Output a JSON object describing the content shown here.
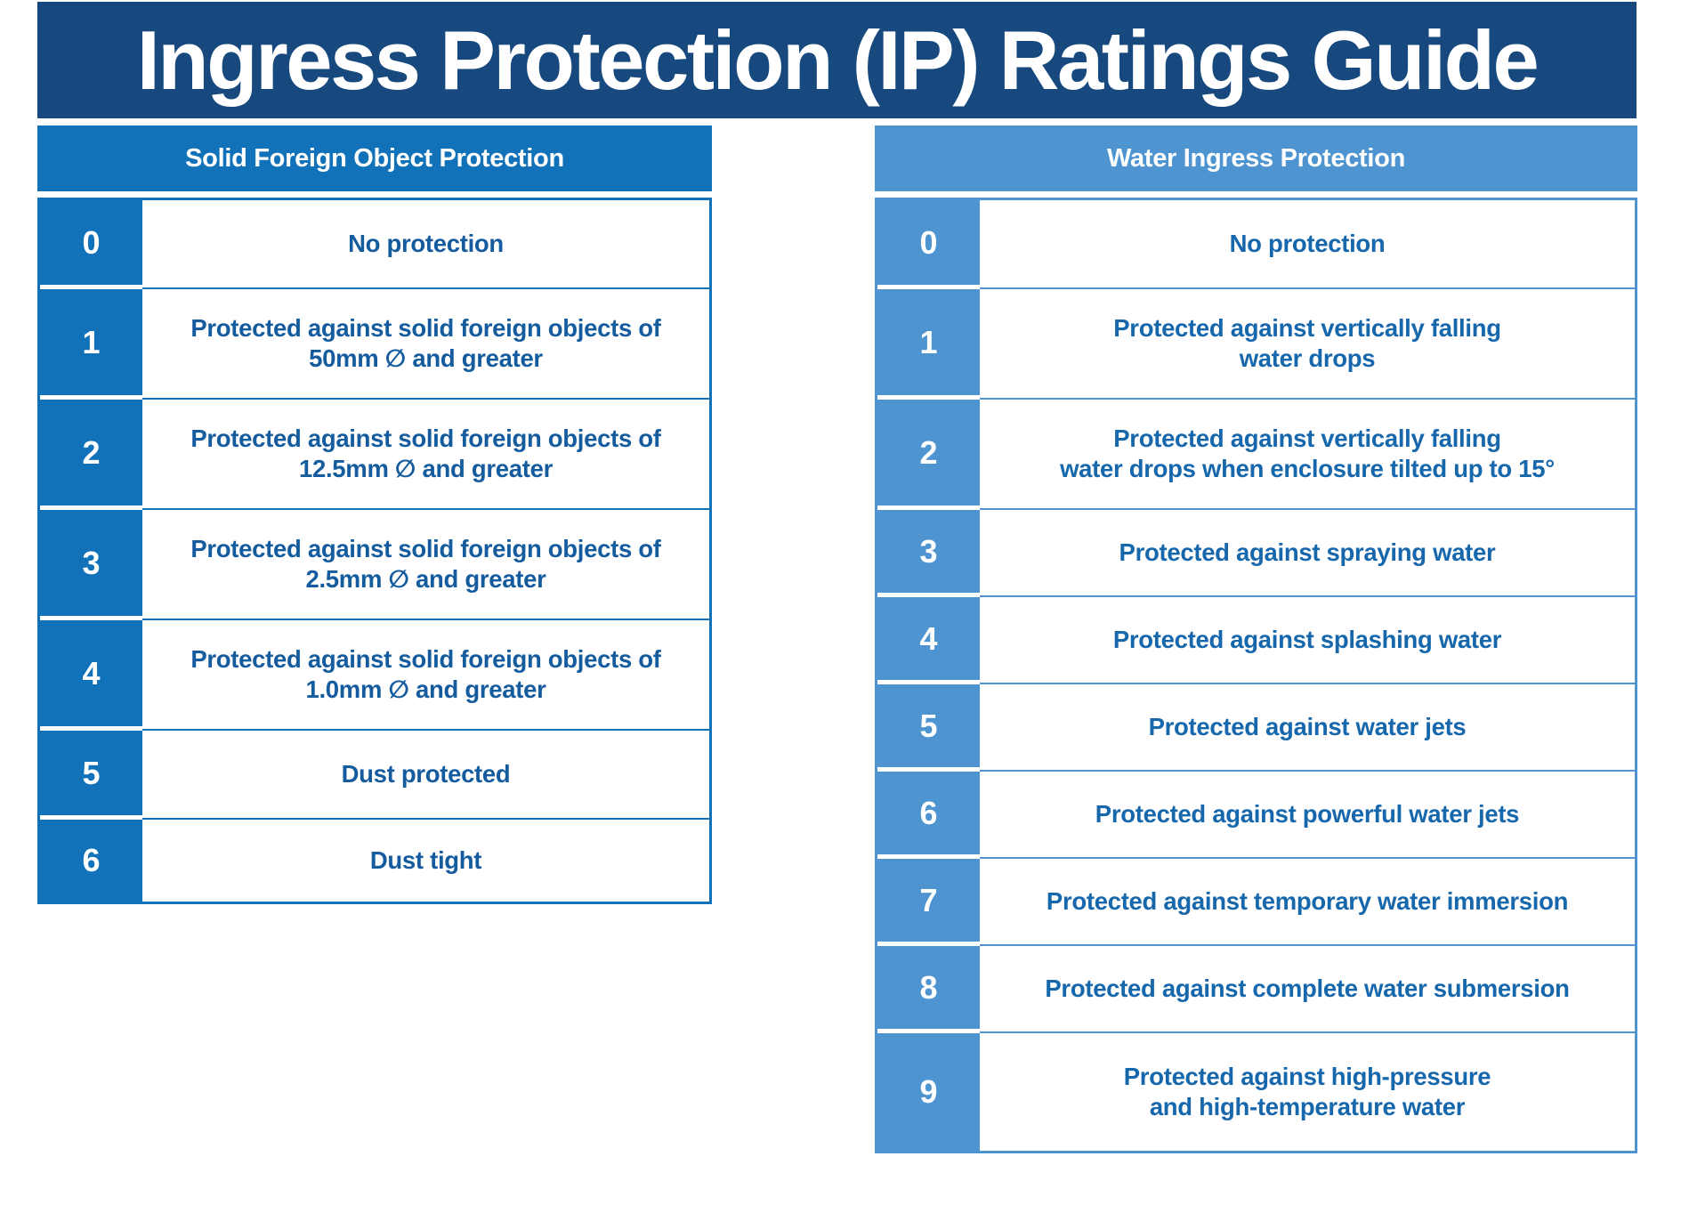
{
  "title": "Ingress Protection (IP) Ratings Guide",
  "colors": {
    "banner_background": "#17497F",
    "banner_text": "#FFFFFF",
    "solid_table_accent": "#1272B9",
    "water_table_accent": "#4E94D0",
    "solid_table_text": "#155C9F",
    "water_table_text": "#1767AC"
  },
  "solid_table": {
    "header": "Solid Foreign Object Protection",
    "rows": [
      {
        "rating": "0",
        "description": "No protection"
      },
      {
        "rating": "1",
        "description": "Protected against solid foreign objects of\n50mm ∅ and greater"
      },
      {
        "rating": "2",
        "description": "Protected against solid foreign objects of\n12.5mm ∅ and greater"
      },
      {
        "rating": "3",
        "description": "Protected against solid foreign objects of\n2.5mm ∅ and greater"
      },
      {
        "rating": "4",
        "description": "Protected against solid foreign objects of\n1.0mm ∅ and greater"
      },
      {
        "rating": "5",
        "description": "Dust protected"
      },
      {
        "rating": "6",
        "description": "Dust tight"
      }
    ]
  },
  "water_table": {
    "header": "Water Ingress Protection",
    "rows": [
      {
        "rating": "0",
        "description": "No protection"
      },
      {
        "rating": "1",
        "description": "Protected against vertically falling\nwater drops"
      },
      {
        "rating": "2",
        "description": "Protected against vertically falling\nwater drops when enclosure tilted up to 15°"
      },
      {
        "rating": "3",
        "description": "Protected against spraying water"
      },
      {
        "rating": "4",
        "description": "Protected against splashing water"
      },
      {
        "rating": "5",
        "description": "Protected against water jets"
      },
      {
        "rating": "6",
        "description": "Protected against powerful water jets"
      },
      {
        "rating": "7",
        "description": "Protected against temporary water immersion"
      },
      {
        "rating": "8",
        "description": "Protected against complete water submersion"
      },
      {
        "rating": "9",
        "description": "Protected against high-pressure\nand high-temperature water"
      }
    ]
  }
}
